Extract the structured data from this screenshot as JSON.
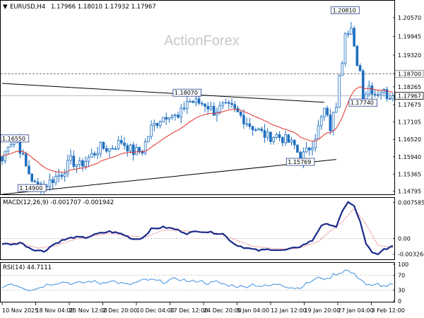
{
  "header": {
    "symbol": "EURUSD,H4",
    "ohlc": "1.17966 1.18010 1.17932 1.17967",
    "watermark": "ActionForex"
  },
  "colors": {
    "candle": "#1f6fbf",
    "ma": "#e0302a",
    "macd": "#1a2a8a",
    "signal": "#e57373",
    "rsi": "#3c8fe0",
    "trendline": "#000000",
    "grid": "#cccccc"
  },
  "chart_data": [
    {
      "type": "candlestick",
      "title": "EURUSD,H4",
      "y_ticks": [
        "1.20570",
        "1.19945",
        "1.19320",
        "1.18700",
        "1.18265",
        "1.17967",
        "1.17675",
        "1.17105",
        "1.16520",
        "1.15940",
        "1.15365",
        "1.14795"
      ],
      "ylim": [
        1.1469,
        1.2113
      ],
      "current_price": "1.17967",
      "ma_current": 1.1823,
      "horizontal_lines": [
        {
          "value": 1.187,
          "style": "dashed"
        },
        {
          "value": 1.17967,
          "style": "solid-thin"
        }
      ],
      "annotations": [
        {
          "text": "1.16550",
          "x_index": 0,
          "y": 1.1655
        },
        {
          "text": "1.14900",
          "x_index": 10,
          "y": 1.149
        },
        {
          "text": "1.18070",
          "x_index": 62,
          "y": 1.1807
        },
        {
          "text": "1.15769",
          "x_index": 100,
          "y": 1.1577
        },
        {
          "text": "1.20810",
          "x_index": 115,
          "y": 1.2081
        },
        {
          "text": "1.17740",
          "x_index": 121,
          "y": 1.1774
        }
      ],
      "trendlines": [
        {
          "x1": 0,
          "y1": 1.1838,
          "x2": 108,
          "y2": 1.1775
        },
        {
          "x1": 0,
          "y1": 1.1469,
          "x2": 112,
          "y2": 1.1585
        }
      ],
      "anchors": [
        [
          0,
          1.158
        ],
        [
          2,
          1.164
        ],
        [
          5,
          1.165
        ],
        [
          8,
          1.156
        ],
        [
          11,
          1.15
        ],
        [
          14,
          1.1495
        ],
        [
          17,
          1.152
        ],
        [
          20,
          1.154
        ],
        [
          23,
          1.158
        ],
        [
          26,
          1.1565
        ],
        [
          29,
          1.159
        ],
        [
          33,
          1.1625
        ],
        [
          36,
          1.162
        ],
        [
          40,
          1.1645
        ],
        [
          44,
          1.161
        ],
        [
          47,
          1.1615
        ],
        [
          50,
          1.169
        ],
        [
          53,
          1.172
        ],
        [
          56,
          1.174
        ],
        [
          59,
          1.172
        ],
        [
          62,
          1.178
        ],
        [
          65,
          1.1775
        ],
        [
          68,
          1.177
        ],
        [
          71,
          1.1745
        ],
        [
          74,
          1.176
        ],
        [
          77,
          1.1755
        ],
        [
          80,
          1.173
        ],
        [
          83,
          1.17
        ],
        [
          86,
          1.168
        ],
        [
          89,
          1.166
        ],
        [
          92,
          1.1665
        ],
        [
          95,
          1.165
        ],
        [
          98,
          1.163
        ],
        [
          100,
          1.159
        ],
        [
          102,
          1.161
        ],
        [
          104,
          1.164
        ],
        [
          106,
          1.169
        ],
        [
          108,
          1.175
        ],
        [
          110,
          1.169
        ],
        [
          112,
          1.177
        ],
        [
          113,
          1.188
        ],
        [
          114,
          1.192
        ],
        [
          115,
          1.202
        ],
        [
          116,
          1.2
        ],
        [
          117,
          1.201
        ],
        [
          118,
          1.195
        ],
        [
          119,
          1.191
        ],
        [
          120,
          1.188
        ],
        [
          121,
          1.179
        ],
        [
          123,
          1.183
        ],
        [
          125,
          1.1805
        ],
        [
          127,
          1.1815
        ],
        [
          129,
          1.18
        ],
        [
          131,
          1.1797
        ]
      ]
    },
    {
      "type": "line",
      "title": "MACD(12,26,9) -0.001707 -0.001942",
      "y_ticks": [
        "0.007585",
        "0.00",
        "-0.003264"
      ],
      "ylim": [
        -0.0042,
        0.0084
      ],
      "anchors_macd": [
        [
          0,
          -0.0011
        ],
        [
          4,
          -0.0012
        ],
        [
          6,
          -0.0008
        ],
        [
          10,
          -0.0022
        ],
        [
          14,
          -0.0027
        ],
        [
          17,
          -0.0013
        ],
        [
          20,
          -0.0004
        ],
        [
          24,
          0.0003
        ],
        [
          28,
          0.0002
        ],
        [
          32,
          0.001
        ],
        [
          36,
          0.0015
        ],
        [
          40,
          0.001
        ],
        [
          44,
          -0.0001
        ],
        [
          47,
          0.0001
        ],
        [
          50,
          0.002
        ],
        [
          54,
          0.0024
        ],
        [
          58,
          0.002
        ],
        [
          62,
          0.0011
        ],
        [
          66,
          0.0016
        ],
        [
          70,
          0.0013
        ],
        [
          74,
          0.001
        ],
        [
          78,
          -0.0012
        ],
        [
          82,
          -0.002
        ],
        [
          86,
          -0.0025
        ],
        [
          90,
          -0.0022
        ],
        [
          94,
          -0.0025
        ],
        [
          98,
          -0.002
        ],
        [
          100,
          -0.0016
        ],
        [
          104,
          -0.0004
        ],
        [
          107,
          0.0028
        ],
        [
          110,
          0.003
        ],
        [
          112,
          0.0025
        ],
        [
          114,
          0.0055
        ],
        [
          116,
          0.0078
        ],
        [
          118,
          0.0068
        ],
        [
          120,
          0.0035
        ],
        [
          122,
          -0.001
        ],
        [
          124,
          -0.003
        ],
        [
          126,
          -0.0034
        ],
        [
          128,
          -0.0022
        ],
        [
          131,
          -0.0017
        ]
      ],
      "anchors_signal": [
        [
          0,
          -0.001
        ],
        [
          6,
          -0.0009
        ],
        [
          12,
          -0.002
        ],
        [
          18,
          -0.0015
        ],
        [
          24,
          -0.0002
        ],
        [
          30,
          0.0005
        ],
        [
          36,
          0.0011
        ],
        [
          42,
          0.0006
        ],
        [
          48,
          0.0003
        ],
        [
          54,
          0.0018
        ],
        [
          60,
          0.0017
        ],
        [
          66,
          0.0014
        ],
        [
          72,
          0.0012
        ],
        [
          78,
          -0.0002
        ],
        [
          84,
          -0.0016
        ],
        [
          90,
          -0.002
        ],
        [
          96,
          -0.0022
        ],
        [
          100,
          -0.0019
        ],
        [
          106,
          -0.0006
        ],
        [
          110,
          0.0016
        ],
        [
          114,
          0.0035
        ],
        [
          118,
          0.0063
        ],
        [
          122,
          0.003
        ],
        [
          126,
          -0.0014
        ],
        [
          131,
          -0.0019
        ]
      ]
    },
    {
      "type": "line",
      "title": "RSI(14) 44.7111",
      "y_ticks": [
        "100",
        "70",
        "30",
        "0"
      ],
      "ylim": [
        0,
        100
      ],
      "anchors_rsi": [
        [
          0,
          38
        ],
        [
          3,
          48
        ],
        [
          6,
          40
        ],
        [
          9,
          31
        ],
        [
          12,
          35
        ],
        [
          15,
          45
        ],
        [
          18,
          49
        ],
        [
          21,
          52
        ],
        [
          24,
          47
        ],
        [
          27,
          50
        ],
        [
          30,
          54
        ],
        [
          33,
          48
        ],
        [
          36,
          56
        ],
        [
          39,
          50
        ],
        [
          42,
          44
        ],
        [
          45,
          50
        ],
        [
          48,
          58
        ],
        [
          51,
          56
        ],
        [
          54,
          52
        ],
        [
          57,
          58
        ],
        [
          60,
          60
        ],
        [
          63,
          52
        ],
        [
          66,
          56
        ],
        [
          69,
          48
        ],
        [
          72,
          52
        ],
        [
          75,
          44
        ],
        [
          78,
          42
        ],
        [
          81,
          38
        ],
        [
          84,
          46
        ],
        [
          87,
          40
        ],
        [
          90,
          42
        ],
        [
          93,
          48
        ],
        [
          96,
          38
        ],
        [
          99,
          35
        ],
        [
          101,
          42
        ],
        [
          104,
          56
        ],
        [
          107,
          65
        ],
        [
          109,
          58
        ],
        [
          111,
          72
        ],
        [
          113,
          76
        ],
        [
          115,
          84
        ],
        [
          116,
          82
        ],
        [
          118,
          72
        ],
        [
          120,
          62
        ],
        [
          122,
          45
        ],
        [
          124,
          40
        ],
        [
          126,
          46
        ],
        [
          128,
          40
        ],
        [
          131,
          45
        ]
      ]
    }
  ],
  "x_axis_labels": [
    "10 Nov 2025",
    "18 Nov 04:00",
    "25 Nov 12:00",
    "2 Dec 20:00",
    "10 Dec 04:00",
    "17 Dec 12:00",
    "24 Dec 20:00",
    "5 Jan 04:00",
    "12 Jan 12:00",
    "19 Jan 20:00",
    "27 Jan 04:00",
    "3 Feb 12:00"
  ]
}
